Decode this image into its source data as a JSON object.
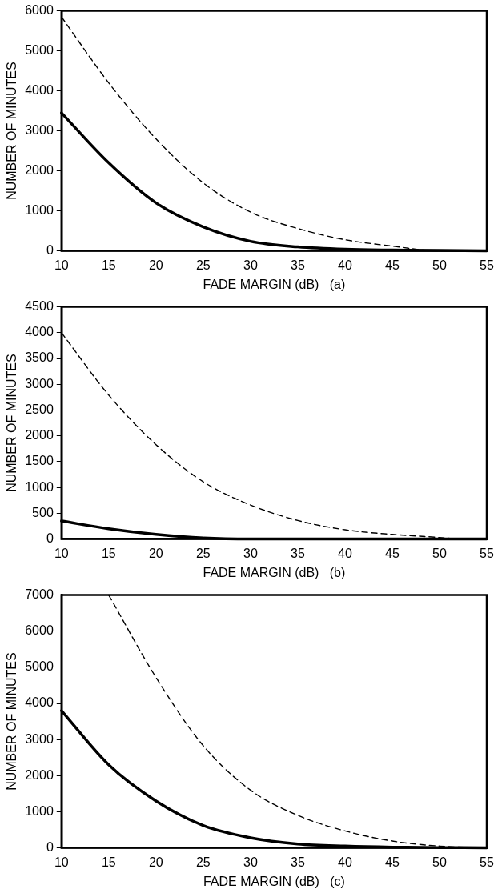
{
  "chart_data": [
    {
      "type": "line",
      "xlabel": "FADE MARGIN (dB)   (a)",
      "ylabel": "NUMBER OF MINUTES",
      "xlim": [
        10,
        55
      ],
      "xticks": [
        10,
        15,
        20,
        25,
        30,
        35,
        40,
        45,
        50,
        55
      ],
      "ylim": [
        0,
        6000
      ],
      "yticks": [
        0,
        1000,
        2000,
        3000,
        4000,
        5000,
        6000
      ],
      "marker": "none",
      "series": [
        {
          "color": "#000000",
          "line_style": "solid",
          "x": [
            10,
            15,
            20,
            25,
            30,
            35,
            40,
            45,
            50,
            55
          ],
          "values": [
            3450,
            2200,
            1200,
            600,
            240,
            100,
            40,
            20,
            10,
            0
          ]
        },
        {
          "color": "#000000",
          "line_style": "dashed",
          "x": [
            10,
            15,
            20,
            25,
            30,
            35,
            40,
            45,
            50,
            55
          ],
          "values": [
            5850,
            4200,
            2800,
            1700,
            970,
            560,
            280,
            120,
            0,
            0
          ]
        }
      ]
    },
    {
      "type": "line",
      "xlabel": "FADE MARGIN (dB)   (b)",
      "ylabel": "NUMBER OF MINUTES",
      "xlim": [
        10,
        55
      ],
      "xticks": [
        10,
        15,
        20,
        25,
        30,
        35,
        40,
        45,
        50,
        55
      ],
      "ylim": [
        0,
        4500
      ],
      "yticks": [
        0,
        500,
        1000,
        1500,
        2000,
        2500,
        3000,
        3500,
        4000,
        4500
      ],
      "marker": "none",
      "series": [
        {
          "color": "#000000",
          "line_style": "solid",
          "x": [
            10,
            15,
            20,
            25,
            30,
            55
          ],
          "values": [
            350,
            200,
            90,
            20,
            0,
            0
          ]
        },
        {
          "color": "#000000",
          "line_style": "dashed",
          "x": [
            10,
            15,
            20,
            25,
            30,
            35,
            40,
            45,
            50,
            52
          ],
          "values": [
            4000,
            2790,
            1830,
            1110,
            660,
            360,
            180,
            90,
            30,
            0
          ]
        }
      ]
    },
    {
      "type": "line",
      "xlabel": "FADE MARGIN (dB)   (c)",
      "ylabel": "NUMBER OF MINUTES",
      "xlim": [
        10,
        55
      ],
      "xticks": [
        10,
        15,
        20,
        25,
        30,
        35,
        40,
        45,
        50,
        55
      ],
      "ylim": [
        0,
        7000
      ],
      "yticks": [
        0,
        1000,
        2000,
        3000,
        4000,
        5000,
        6000,
        7000
      ],
      "marker": "none",
      "series": [
        {
          "color": "#000000",
          "line_style": "solid",
          "x": [
            10,
            15,
            20,
            25,
            30,
            35,
            40,
            45,
            50,
            55
          ],
          "values": [
            3800,
            2300,
            1300,
            620,
            280,
            110,
            50,
            20,
            10,
            0
          ]
        },
        {
          "color": "#000000",
          "line_style": "dashed",
          "x": [
            15,
            20,
            25,
            30,
            35,
            40,
            45,
            50,
            55
          ],
          "values": [
            7000,
            4720,
            2830,
            1600,
            900,
            470,
            190,
            50,
            0
          ]
        }
      ]
    }
  ]
}
